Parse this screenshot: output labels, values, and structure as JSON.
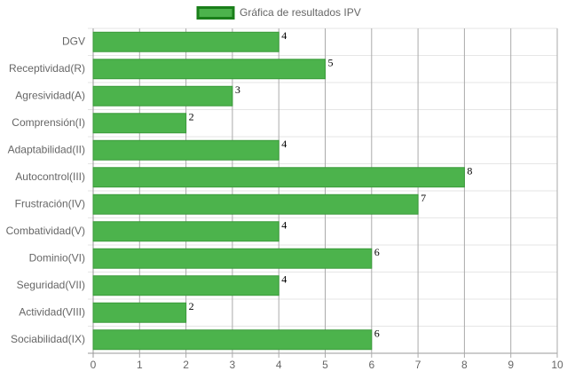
{
  "chart_data": {
    "type": "bar",
    "orientation": "horizontal",
    "categories": [
      "DGV",
      "Receptividad(R)",
      "Agresividad(A)",
      "Comprensión(I)",
      "Adaptabilidad(II)",
      "Autocontrol(III)",
      "Frustración(IV)",
      "Combatividad(V)",
      "Dominio(VI)",
      "Seguridad(VII)",
      "Actividad(VIII)",
      "Sociabilidad(IX)"
    ],
    "series": [
      {
        "name": "Gráfica de resultados IPV",
        "color": "#4cb34c",
        "values": [
          4,
          5,
          3,
          2,
          4,
          8,
          7,
          4,
          6,
          4,
          2,
          6
        ]
      }
    ],
    "xlim": [
      0,
      10
    ],
    "xticks": [
      0,
      1,
      2,
      3,
      4,
      5,
      6,
      7,
      8,
      9,
      10
    ],
    "grid": true,
    "legend": "top"
  }
}
